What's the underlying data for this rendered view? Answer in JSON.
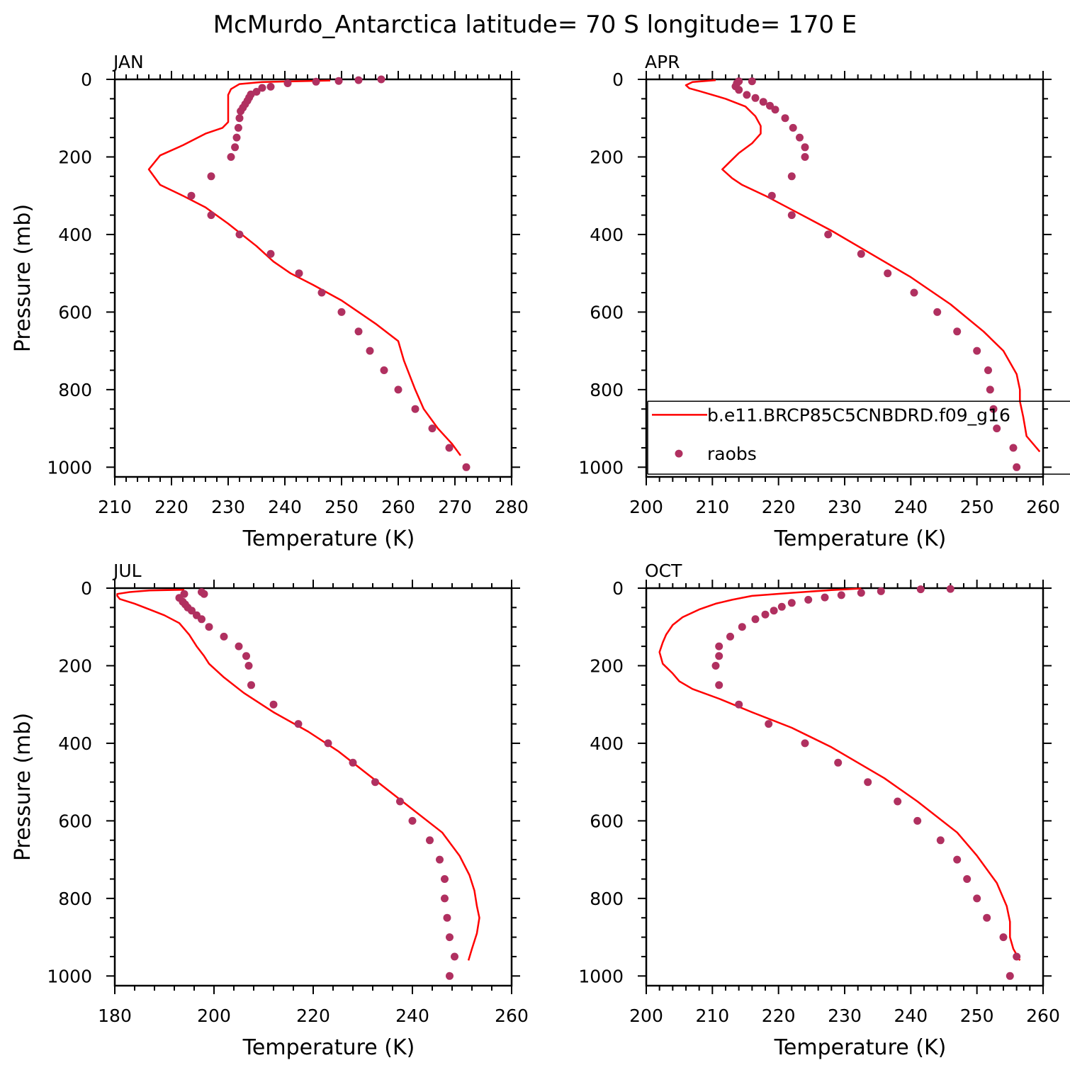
{
  "title": "McMurdo_Antarctica  latitude= 70 S longitude= 170 E",
  "colors": {
    "model_line": "#ff0000",
    "raobs_dot": "#b03060",
    "axis": "#000000"
  },
  "legend": {
    "model_label": "b.e11.BRCP85C5CNBDRD.f09_g16",
    "obs_label": "raobs"
  },
  "chart_data": [
    {
      "type": "line",
      "panel": "JAN",
      "xlabel": "Temperature (K)",
      "ylabel": "Pressure (mb)",
      "xlim": [
        210,
        280
      ],
      "ylim": [
        1025,
        0
      ],
      "xticks": [
        210,
        220,
        230,
        240,
        250,
        260,
        270,
        280
      ],
      "yticks": [
        0,
        200,
        400,
        600,
        800,
        1000
      ],
      "series": [
        {
          "name": "b.e11.BRCP85C5CNBDRD.f09_g16",
          "style": "line",
          "points": [
            [
              248,
              3
            ],
            [
              236,
              7
            ],
            [
              232,
              12
            ],
            [
              230.5,
              25
            ],
            [
              230,
              40
            ],
            [
              230,
              80
            ],
            [
              230,
              110
            ],
            [
              229,
              125
            ],
            [
              226,
              140
            ],
            [
              222,
              170
            ],
            [
              218,
              196
            ],
            [
              216,
              232
            ],
            [
              218,
              272
            ],
            [
              222,
              300
            ],
            [
              226,
              330
            ],
            [
              230,
              372
            ],
            [
              235,
              430
            ],
            [
              238,
              470
            ],
            [
              241,
              500
            ],
            [
              245,
              530
            ],
            [
              250,
              570
            ],
            [
              256,
              630
            ],
            [
              260,
              675
            ],
            [
              261,
              725
            ],
            [
              263,
              800
            ],
            [
              264.5,
              850
            ],
            [
              267,
              900
            ],
            [
              269.5,
              940
            ],
            [
              271,
              970
            ]
          ]
        },
        {
          "name": "raobs",
          "style": "dots",
          "points": [
            [
              257,
              0
            ],
            [
              253,
              2
            ],
            [
              249.5,
              4
            ],
            [
              245.5,
              6
            ],
            [
              240.5,
              10
            ],
            [
              237.5,
              19
            ],
            [
              236,
              22
            ],
            [
              235,
              32
            ],
            [
              234,
              39
            ],
            [
              233.7,
              47
            ],
            [
              233.4,
              55
            ],
            [
              233,
              64
            ],
            [
              232.6,
              73
            ],
            [
              232.2,
              82
            ],
            [
              232,
              100
            ],
            [
              231.8,
              125
            ],
            [
              231.5,
              150
            ],
            [
              231.2,
              175
            ],
            [
              230.5,
              200
            ],
            [
              227,
              250
            ],
            [
              223.5,
              300
            ],
            [
              227,
              350
            ],
            [
              232,
              400
            ],
            [
              237.5,
              450
            ],
            [
              242.5,
              500
            ],
            [
              246.5,
              550
            ],
            [
              250,
              600
            ],
            [
              253,
              650
            ],
            [
              255,
              700
            ],
            [
              257.5,
              750
            ],
            [
              260,
              800
            ],
            [
              263,
              850
            ],
            [
              266,
              900
            ],
            [
              269,
              950
            ],
            [
              272,
              1000
            ]
          ]
        }
      ]
    },
    {
      "type": "line",
      "panel": "APR",
      "xlabel": "Temperature (K)",
      "ylabel": "",
      "xlim": [
        200,
        260
      ],
      "ylim": [
        1025,
        0
      ],
      "xticks": [
        200,
        210,
        220,
        230,
        240,
        250,
        260
      ],
      "yticks": [
        0,
        200,
        400,
        600,
        800,
        1000
      ],
      "series": [
        {
          "name": "b.e11.BRCP85C5CNBDRD.f09_g16",
          "style": "line",
          "points": [
            [
              210.5,
              2
            ],
            [
              207,
              7
            ],
            [
              206,
              15
            ],
            [
              206.5,
              23
            ],
            [
              208,
              30
            ],
            [
              212,
              50
            ],
            [
              215,
              70
            ],
            [
              216.5,
              95
            ],
            [
              217.3,
              120
            ],
            [
              217.3,
              140
            ],
            [
              216,
              165
            ],
            [
              214,
              190
            ],
            [
              212.5,
              215
            ],
            [
              211.5,
              232
            ],
            [
              213,
              255
            ],
            [
              214.5,
              272
            ],
            [
              218,
              300
            ],
            [
              223,
              345
            ],
            [
              228,
              390
            ],
            [
              233,
              440
            ],
            [
              240,
              510
            ],
            [
              246,
              580
            ],
            [
              251,
              650
            ],
            [
              254,
              700
            ],
            [
              256,
              760
            ],
            [
              256.5,
              800
            ],
            [
              256.5,
              830
            ],
            [
              257,
              870
            ],
            [
              257.5,
              920
            ],
            [
              259.5,
              960
            ]
          ]
        },
        {
          "name": "raobs",
          "style": "dots",
          "points": [
            [
              216,
              5
            ],
            [
              214,
              5
            ],
            [
              213.7,
              10
            ],
            [
              213.5,
              18
            ],
            [
              214,
              27
            ],
            [
              215.2,
              40
            ],
            [
              216.5,
              48
            ],
            [
              217.7,
              58
            ],
            [
              218.7,
              68
            ],
            [
              219.5,
              78
            ],
            [
              221,
              100
            ],
            [
              222.2,
              125
            ],
            [
              223.2,
              150
            ],
            [
              224,
              175
            ],
            [
              224,
              200
            ],
            [
              222,
              250
            ],
            [
              219,
              300
            ],
            [
              222,
              350
            ],
            [
              227.5,
              400
            ],
            [
              232.5,
              450
            ],
            [
              236.5,
              500
            ],
            [
              240.5,
              550
            ],
            [
              244,
              600
            ],
            [
              247,
              650
            ],
            [
              250,
              700
            ],
            [
              251.7,
              750
            ],
            [
              252,
              800
            ],
            [
              252.5,
              850
            ],
            [
              253,
              900
            ],
            [
              255.5,
              950
            ],
            [
              256,
              1000
            ]
          ]
        }
      ]
    },
    {
      "type": "line",
      "panel": "JUL",
      "xlabel": "Temperature (K)",
      "ylabel": "Pressure (mb)",
      "xlim": [
        180,
        260
      ],
      "ylim": [
        1025,
        0
      ],
      "xticks": [
        180,
        200,
        220,
        240,
        260
      ],
      "yticks": [
        0,
        200,
        400,
        600,
        800,
        1000
      ],
      "series": [
        {
          "name": "b.e11.BRCP85C5CNBDRD.f09_g16",
          "style": "line",
          "points": [
            [
              194,
              4
            ],
            [
              187,
              6
            ],
            [
              183,
              10
            ],
            [
              180.5,
              15
            ],
            [
              180.5,
              20
            ],
            [
              181,
              28
            ],
            [
              184,
              40
            ],
            [
              187,
              55
            ],
            [
              190,
              70
            ],
            [
              193,
              90
            ],
            [
              195,
              120
            ],
            [
              196.5,
              150
            ],
            [
              198,
              175
            ],
            [
              199,
              195
            ],
            [
              202,
              230
            ],
            [
              206,
              270
            ],
            [
              212,
              320
            ],
            [
              219,
              370
            ],
            [
              225,
              420
            ],
            [
              234,
              510
            ],
            [
              240,
              570
            ],
            [
              246,
              630
            ],
            [
              249.5,
              690
            ],
            [
              251.5,
              740
            ],
            [
              252.5,
              780
            ],
            [
              253,
              820
            ],
            [
              253.5,
              850
            ],
            [
              253,
              890
            ],
            [
              252,
              930
            ],
            [
              251.3,
              960
            ]
          ]
        },
        {
          "name": "raobs",
          "style": "dots",
          "points": [
            [
              197.5,
              10
            ],
            [
              198,
              15
            ],
            [
              194,
              15
            ],
            [
              193,
              25
            ],
            [
              193.7,
              35
            ],
            [
              194.2,
              42
            ],
            [
              194.7,
              50
            ],
            [
              195.5,
              58
            ],
            [
              196.5,
              70
            ],
            [
              197.5,
              80
            ],
            [
              199,
              100
            ],
            [
              202,
              125
            ],
            [
              205,
              150
            ],
            [
              206.5,
              175
            ],
            [
              207,
              200
            ],
            [
              207.5,
              250
            ],
            [
              212,
              300
            ],
            [
              217,
              350
            ],
            [
              223,
              400
            ],
            [
              228,
              450
            ],
            [
              232.5,
              500
            ],
            [
              237.5,
              550
            ],
            [
              240,
              600
            ],
            [
              243.5,
              650
            ],
            [
              245.5,
              700
            ],
            [
              246.5,
              750
            ],
            [
              246.5,
              800
            ],
            [
              247,
              850
            ],
            [
              247.5,
              900
            ],
            [
              248.5,
              950
            ],
            [
              247.5,
              1000
            ]
          ]
        }
      ]
    },
    {
      "type": "line",
      "panel": "OCT",
      "xlabel": "Temperature (K)",
      "ylabel": "",
      "xlim": [
        200,
        260
      ],
      "ylim": [
        1025,
        0
      ],
      "xticks": [
        200,
        210,
        220,
        230,
        240,
        250,
        260
      ],
      "yticks": [
        0,
        200,
        400,
        600,
        800,
        1000
      ],
      "series": [
        {
          "name": "b.e11.BRCP85C5CNBDRD.f09_g16",
          "style": "line",
          "points": [
            [
              232.5,
              1
            ],
            [
              228,
              5
            ],
            [
              222,
              12
            ],
            [
              216,
              20
            ],
            [
              213,
              30
            ],
            [
              210.5,
              40
            ],
            [
              208,
              55
            ],
            [
              205.5,
              75
            ],
            [
              204,
              95
            ],
            [
              203,
              120
            ],
            [
              202.5,
              140
            ],
            [
              202,
              165
            ],
            [
              202.5,
              195
            ],
            [
              204,
              220
            ],
            [
              205,
              240
            ],
            [
              207,
              260
            ],
            [
              211,
              285
            ],
            [
              216,
              320
            ],
            [
              222,
              360
            ],
            [
              228,
              410
            ],
            [
              236,
              490
            ],
            [
              241,
              550
            ],
            [
              247,
              630
            ],
            [
              250,
              690
            ],
            [
              253,
              760
            ],
            [
              254.5,
              820
            ],
            [
              255,
              860
            ],
            [
              255,
              900
            ],
            [
              255.5,
              930
            ],
            [
              256.5,
              960
            ]
          ]
        },
        {
          "name": "raobs",
          "style": "dots",
          "points": [
            [
              246,
              2
            ],
            [
              241.5,
              3
            ],
            [
              235.5,
              8
            ],
            [
              232.5,
              12
            ],
            [
              229.5,
              18
            ],
            [
              227,
              24
            ],
            [
              224.5,
              30
            ],
            [
              222,
              38
            ],
            [
              220.5,
              48
            ],
            [
              219.3,
              58
            ],
            [
              218,
              68
            ],
            [
              216.5,
              80
            ],
            [
              214.5,
              100
            ],
            [
              212.7,
              125
            ],
            [
              211,
              150
            ],
            [
              211,
              175
            ],
            [
              210.5,
              200
            ],
            [
              211,
              250
            ],
            [
              214,
              300
            ],
            [
              218.5,
              350
            ],
            [
              224,
              400
            ],
            [
              229,
              450
            ],
            [
              233.5,
              500
            ],
            [
              238,
              550
            ],
            [
              241,
              600
            ],
            [
              244.5,
              650
            ],
            [
              247,
              700
            ],
            [
              248.5,
              750
            ],
            [
              250,
              800
            ],
            [
              251.5,
              850
            ],
            [
              254,
              900
            ],
            [
              256,
              950
            ],
            [
              255,
              1000
            ]
          ]
        }
      ]
    }
  ]
}
